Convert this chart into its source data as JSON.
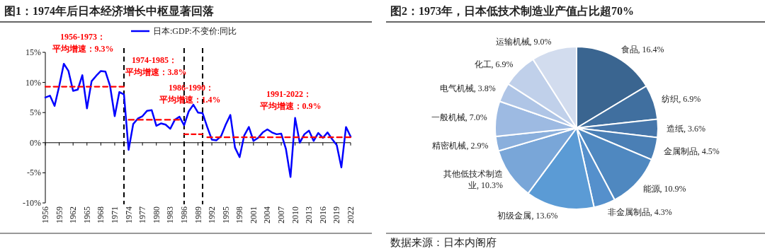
{
  "chart_data": [
    {
      "type": "line",
      "title": "图1：1974年后日本经济增长中枢显著回落",
      "x": [
        1956,
        1957,
        1958,
        1959,
        1960,
        1961,
        1962,
        1963,
        1964,
        1965,
        1966,
        1967,
        1968,
        1969,
        1970,
        1971,
        1972,
        1973,
        1974,
        1975,
        1976,
        1977,
        1978,
        1979,
        1980,
        1981,
        1982,
        1983,
        1984,
        1985,
        1986,
        1987,
        1988,
        1989,
        1990,
        1991,
        1992,
        1993,
        1994,
        1995,
        1996,
        1997,
        1998,
        1999,
        2000,
        2001,
        2002,
        2003,
        2004,
        2005,
        2006,
        2007,
        2008,
        2009,
        2010,
        2011,
        2012,
        2013,
        2014,
        2015,
        2016,
        2017,
        2018,
        2019,
        2020,
        2021,
        2022
      ],
      "series": [
        {
          "name": "日本:GDP:不变价:同比",
          "color": "#0000ff",
          "values": [
            7.5,
            7.8,
            6.1,
            9.4,
            13.1,
            11.9,
            8.6,
            8.8,
            11.2,
            5.7,
            10.2,
            11.1,
            11.9,
            11.8,
            9.4,
            4.4,
            8.4,
            8.0,
            -1.2,
            3.1,
            4.0,
            4.4,
            5.3,
            5.4,
            2.8,
            3.2,
            3.0,
            2.3,
            3.8,
            4.3,
            2.9,
            5.2,
            6.3,
            5.0,
            4.9,
            2.6,
            0.5,
            0.4,
            1.1,
            3.0,
            4.6,
            -0.8,
            -2.4,
            1.2,
            2.6,
            0.3,
            0.8,
            1.7,
            2.2,
            1.7,
            1.4,
            1.5,
            -1.0,
            -5.7,
            4.1,
            0.0,
            1.4,
            2.0,
            0.3,
            1.6,
            0.8,
            1.7,
            0.6,
            -0.4,
            -4.1,
            2.6,
            1.0
          ]
        },
        {
          "type": "line",
          "color": "#ff0000",
          "line_style": "dashed",
          "x": [
            1956,
            1973
          ],
          "values": [
            9.3,
            9.3
          ]
        },
        {
          "type": "line",
          "color": "#ff0000",
          "line_style": "dashed",
          "x": [
            1974,
            1985
          ],
          "values": [
            3.8,
            3.8
          ]
        },
        {
          "type": "line",
          "color": "#ff0000",
          "line_style": "dashed",
          "x": [
            1986,
            1990
          ],
          "values": [
            1.4,
            1.4
          ]
        },
        {
          "type": "line",
          "color": "#ff0000",
          "line_style": "dashed",
          "x": [
            1991,
            2022
          ],
          "values": [
            0.9,
            0.9
          ]
        }
      ],
      "xlim": [
        1956,
        2022
      ],
      "xticks": [
        1956,
        1959,
        1962,
        1965,
        1968,
        1971,
        1974,
        1977,
        1980,
        1983,
        1986,
        1989,
        1992,
        1995,
        1998,
        2001,
        2004,
        2007,
        2010,
        2013,
        2016,
        2019,
        2022
      ],
      "ylim": [
        -10,
        15
      ],
      "yticks": [
        {
          "value": -10,
          "label": "-10%"
        },
        {
          "value": -5,
          "label": "-5%"
        },
        {
          "value": 0,
          "label": "0%"
        },
        {
          "value": 5,
          "label": "5%"
        },
        {
          "value": 10,
          "label": "10%"
        },
        {
          "value": 15,
          "label": "15%"
        }
      ],
      "ref_lines": [
        {
          "axis": "x",
          "value": 1973,
          "color": "#000000",
          "line_style": "dashed"
        },
        {
          "axis": "x",
          "value": 1986,
          "color": "#000000",
          "line_style": "dashed"
        },
        {
          "axis": "x",
          "value": 1990,
          "color": "#000000",
          "line_style": "dashed"
        }
      ],
      "annotations": [
        "1956-1973：",
        "平均增速：9.3%",
        "1974-1985：",
        "平均增速：3.8%",
        "1986-1990：",
        "平均增速：1.4%",
        "1991-2022：",
        "平均增速：0.9%"
      ],
      "legend": "top",
      "grid": false,
      "marker": "none"
    },
    {
      "type": "pie",
      "title": "图2：1973年，日本低技术制造业产值占比超70%",
      "categories": [
        "食品",
        "纺织",
        "造纸",
        "金属制品",
        "能源",
        "非金属制品",
        "初级金属",
        "其他低技术制造业",
        "精密机械",
        "一般机械",
        "电气机械",
        "化工",
        "运输机械"
      ],
      "values": [
        16.4,
        6.9,
        3.6,
        4.5,
        10.9,
        4.3,
        13.6,
        10.3,
        2.9,
        7.0,
        3.8,
        6.9,
        9.0
      ],
      "colors": [
        "#3a6590",
        "#406f9f",
        "#4676aa",
        "#4a7fb5",
        "#4f88c0",
        "#5590cc",
        "#5b9bd5",
        "#79a6d8",
        "#8aafdc",
        "#9dbae2",
        "#afc5e6",
        "#c0d0ea",
        "#d2dcee"
      ],
      "value_labels": [
        ", 16.4%",
        ", 6.9%",
        ", 3.6%",
        ", 4.5%",
        ", 10.9%",
        ", 4.3%",
        ", 13.6%",
        ", 10.3%",
        ", 2.9%",
        ", 7.0%",
        ", 3.8%",
        ", 6.9%",
        ", 9.0%"
      ],
      "annotations": [
        "数据来源：日本内阁府"
      ]
    }
  ]
}
